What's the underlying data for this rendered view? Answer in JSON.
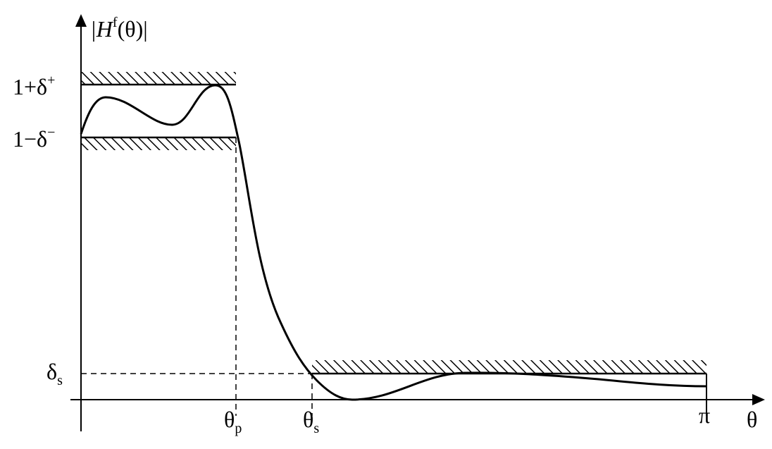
{
  "y_axis_label": {
    "main": "|H",
    "sup": "f",
    "tail": "(θ)|"
  },
  "upper_bound": {
    "main": "1+δ",
    "sup": "+"
  },
  "lower_bound": {
    "main": "1−δ",
    "sup": "−"
  },
  "stopband_level": {
    "main": "δ",
    "sub": "s"
  },
  "passband_edge": {
    "main": "θ",
    "sub": "p"
  },
  "stopband_edge": {
    "main": "θ",
    "sub": "s"
  },
  "pi_label": "π",
  "x_axis_label": "θ"
}
